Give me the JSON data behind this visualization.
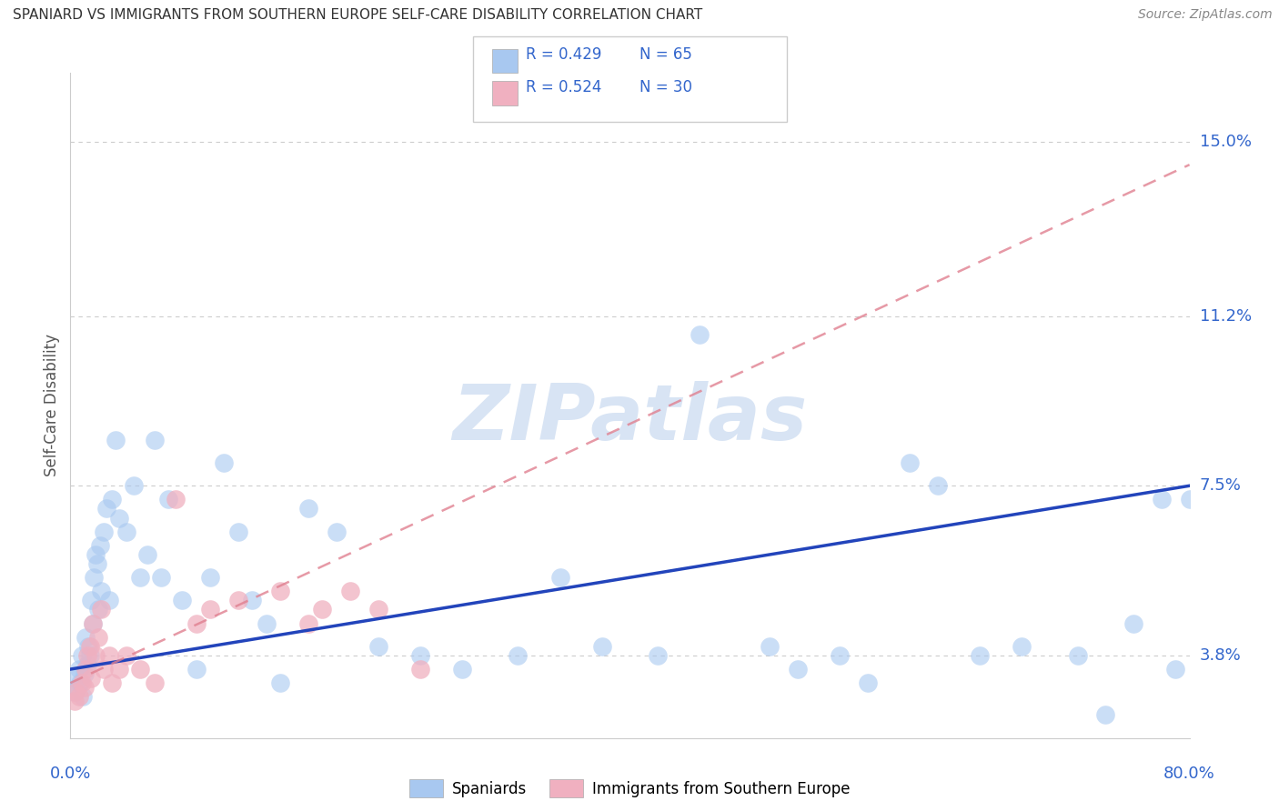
{
  "title": "SPANIARD VS IMMIGRANTS FROM SOUTHERN EUROPE SELF-CARE DISABILITY CORRELATION CHART",
  "source": "Source: ZipAtlas.com",
  "ylabel": "Self-Care Disability",
  "ytick_vals": [
    3.8,
    7.5,
    11.2,
    15.0
  ],
  "ytick_labels": [
    "3.8%",
    "7.5%",
    "11.2%",
    "15.0%"
  ],
  "xlim": [
    0.0,
    80.0
  ],
  "ylim": [
    2.0,
    16.5
  ],
  "legend1_label": "Spaniards",
  "legend2_label": "Immigrants from Southern Europe",
  "legend1_R": "0.429",
  "legend1_N": "65",
  "legend2_R": "0.524",
  "legend2_N": "30",
  "blue_color": "#a8c8f0",
  "pink_color": "#f0b0c0",
  "blue_line_color": "#2244bb",
  "pink_line_color": "#e08090",
  "axis_label_color": "#3366cc",
  "title_color": "#333333",
  "source_color": "#888888",
  "grid_color": "#cccccc",
  "watermark_text": "ZIPatlas",
  "watermark_color": "#d8e4f4",
  "blue_line_start_y": 3.5,
  "blue_line_end_y": 7.5,
  "pink_line_start_y": 3.2,
  "pink_line_end_y": 14.5,
  "blue_x": [
    0.3,
    0.4,
    0.5,
    0.6,
    0.7,
    0.8,
    0.9,
    1.0,
    1.1,
    1.2,
    1.3,
    1.4,
    1.5,
    1.6,
    1.7,
    1.8,
    1.9,
    2.0,
    2.1,
    2.2,
    2.4,
    2.6,
    2.8,
    3.0,
    3.2,
    3.5,
    4.0,
    4.5,
    5.0,
    5.5,
    6.0,
    6.5,
    7.0,
    8.0,
    9.0,
    10.0,
    11.0,
    12.0,
    13.0,
    14.0,
    15.0,
    17.0,
    19.0,
    22.0,
    25.0,
    28.0,
    32.0,
    35.0,
    38.0,
    42.0,
    45.0,
    50.0,
    52.0,
    55.0,
    57.0,
    60.0,
    62.0,
    65.0,
    68.0,
    72.0,
    74.0,
    76.0,
    78.0,
    79.0,
    80.0
  ],
  "blue_y": [
    3.0,
    3.3,
    3.1,
    3.5,
    3.2,
    3.8,
    2.9,
    3.4,
    4.2,
    3.6,
    4.0,
    3.8,
    5.0,
    4.5,
    5.5,
    6.0,
    5.8,
    4.8,
    6.2,
    5.2,
    6.5,
    7.0,
    5.0,
    7.2,
    8.5,
    6.8,
    6.5,
    7.5,
    5.5,
    6.0,
    8.5,
    5.5,
    7.2,
    5.0,
    3.5,
    5.5,
    8.0,
    6.5,
    5.0,
    4.5,
    3.2,
    7.0,
    6.5,
    4.0,
    3.8,
    3.5,
    3.8,
    5.5,
    4.0,
    3.8,
    10.8,
    4.0,
    3.5,
    3.8,
    3.2,
    8.0,
    7.5,
    3.8,
    4.0,
    3.8,
    2.5,
    4.5,
    7.2,
    3.5,
    7.2
  ],
  "pink_x": [
    0.3,
    0.4,
    0.6,
    0.8,
    1.0,
    1.1,
    1.2,
    1.4,
    1.5,
    1.6,
    1.8,
    2.0,
    2.2,
    2.4,
    2.8,
    3.0,
    3.5,
    4.0,
    5.0,
    6.0,
    7.5,
    9.0,
    10.0,
    12.0,
    15.0,
    17.0,
    18.0,
    20.0,
    22.0,
    25.0
  ],
  "pink_y": [
    2.8,
    3.0,
    2.9,
    3.2,
    3.1,
    3.5,
    3.8,
    4.0,
    3.3,
    4.5,
    3.8,
    4.2,
    4.8,
    3.5,
    3.8,
    3.2,
    3.5,
    3.8,
    3.5,
    3.2,
    7.2,
    4.5,
    4.8,
    5.0,
    5.2,
    4.5,
    4.8,
    5.2,
    4.8,
    3.5
  ]
}
